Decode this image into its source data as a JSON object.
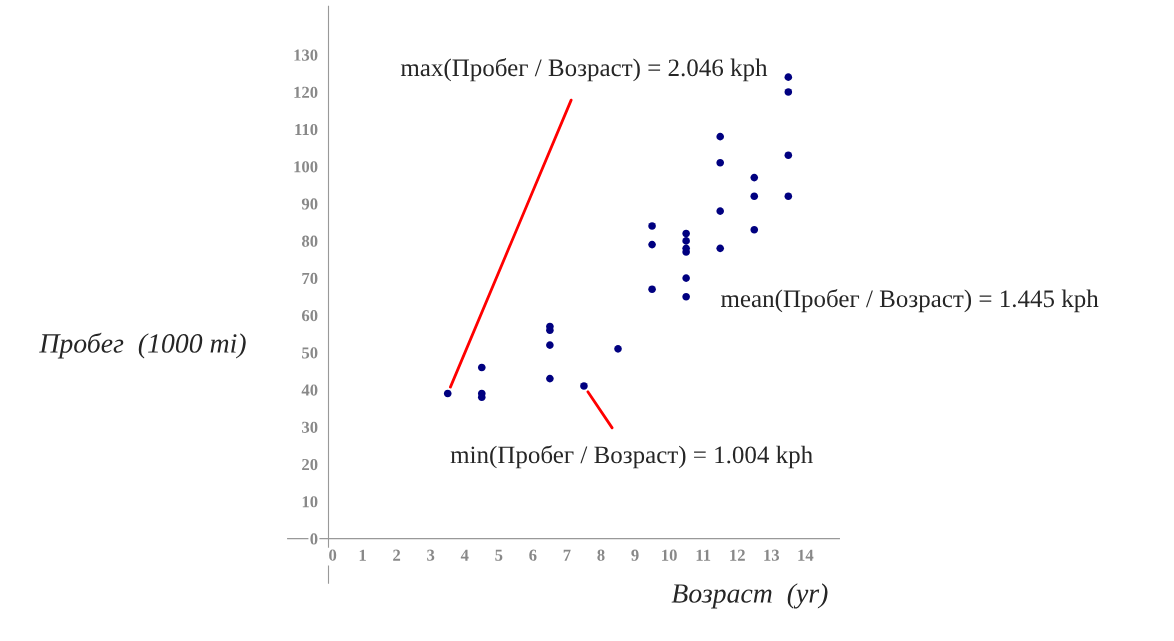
{
  "chart_data": {
    "type": "scatter",
    "xlabel": "Возраст  (yr)",
    "ylabel": "Пробег  (1000 mi)",
    "x": [
      3.5,
      4.5,
      4.5,
      4.5,
      6.5,
      6.5,
      6.5,
      6.5,
      7.5,
      8.5,
      9.5,
      9.5,
      9.5,
      10.5,
      10.5,
      10.5,
      10.5,
      10.5,
      10.5,
      11.5,
      11.5,
      11.5,
      11.5,
      12.5,
      12.5,
      12.5,
      13.5,
      13.5,
      13.5,
      13.5
    ],
    "series": [
      {
        "color": "#000080",
        "values": [
          39,
          46,
          39,
          38,
          57,
          56,
          52,
          43,
          41,
          51,
          84,
          79,
          67,
          82,
          80,
          78,
          77,
          70,
          65,
          108,
          101,
          88,
          78,
          97,
          92,
          83,
          124,
          120,
          103,
          92
        ]
      }
    ],
    "xlim": [
      -1.2,
      15
    ],
    "ylim": [
      -12,
      143
    ],
    "xticks": [
      0,
      1,
      2,
      3,
      4,
      5,
      6,
      7,
      8,
      9,
      10,
      11,
      12,
      13,
      14
    ],
    "yticks": [
      0,
      10,
      20,
      30,
      40,
      50,
      60,
      70,
      80,
      90,
      100,
      110,
      120,
      130
    ],
    "marker": "circle",
    "grid": false,
    "annotations": [
      {
        "text": "max(Пробег / Возраст) = 2.046 kph",
        "x": 3.5,
        "y": 39
      },
      {
        "text": "min(Пробег / Возраст) = 1.004 kph",
        "x": 7.5,
        "y": 41
      },
      "mean(Пробег / Возраст) = 1.445 kph"
    ]
  }
}
